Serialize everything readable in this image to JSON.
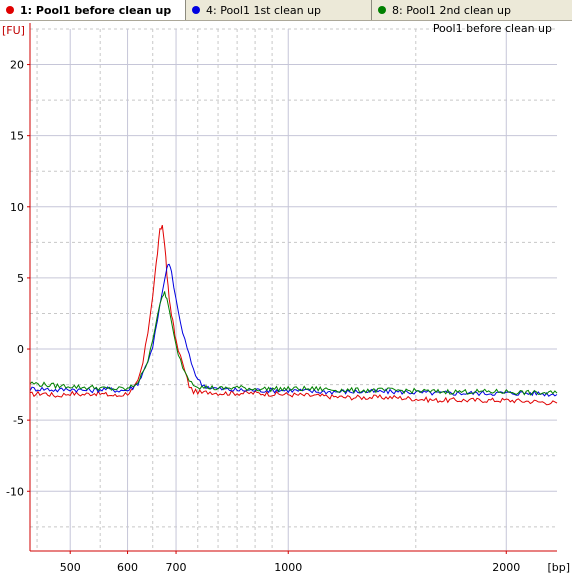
{
  "tabs": [
    {
      "label": "1: Pool1 before clean up",
      "color": "#e00000",
      "active": true
    },
    {
      "label": "4: Pool1 1st clean up",
      "color": "#0000e0",
      "active": false
    },
    {
      "label": "8: Pool1 2nd clean up",
      "color": "#008000",
      "active": false
    }
  ],
  "chart_data": {
    "type": "line",
    "title": "Pool1 before clean up",
    "ylabel": "[FU]",
    "xlabel": "[bp]",
    "ylim": [
      -14.2,
      22.5
    ],
    "xlim": [
      440,
      2350
    ],
    "x_scale": "log",
    "y_ticks": [
      20,
      15,
      10,
      5,
      0,
      -5,
      -10
    ],
    "x_ticks": [
      500,
      600,
      700,
      1000,
      2000
    ],
    "grid": true,
    "series": [
      {
        "name": "1: Pool1 before clean up",
        "color": "#e00000",
        "x": [
          440,
          460,
          480,
          500,
          520,
          540,
          560,
          580,
          600,
          610,
          620,
          630,
          640,
          650,
          655,
          660,
          665,
          670,
          675,
          680,
          685,
          690,
          695,
          700,
          710,
          720,
          730,
          740,
          750,
          760,
          780,
          800,
          850,
          900,
          1000,
          1100,
          1200,
          1400,
          1600,
          1800,
          2000,
          2200,
          2350
        ],
        "y": [
          -3.2,
          -3.1,
          -3.3,
          -3.1,
          -3.2,
          -3.1,
          -3.2,
          -3.3,
          -3.1,
          -2.9,
          -2.3,
          -1.0,
          1.2,
          3.8,
          5.3,
          6.8,
          8.3,
          8.7,
          7.5,
          5.2,
          3.5,
          2.5,
          1.5,
          0.5,
          -0.5,
          -1.6,
          -2.6,
          -3.0,
          -3.0,
          -3.1,
          -3.0,
          -3.1,
          -3.1,
          -3.1,
          -3.2,
          -3.3,
          -3.4,
          -3.4,
          -3.6,
          -3.6,
          -3.6,
          -3.7,
          -3.8
        ]
      },
      {
        "name": "4: Pool1 1st clean up",
        "color": "#0000e0",
        "x": [
          440,
          460,
          480,
          500,
          520,
          540,
          560,
          580,
          600,
          610,
          620,
          630,
          640,
          650,
          660,
          670,
          680,
          685,
          690,
          700,
          710,
          720,
          730,
          740,
          750,
          760,
          780,
          800,
          850,
          900,
          1000,
          1100,
          1200,
          1400,
          1600,
          1800,
          2000,
          2200,
          2350
        ],
        "y": [
          -2.8,
          -2.8,
          -2.9,
          -2.8,
          -2.9,
          -2.9,
          -2.8,
          -2.9,
          -2.9,
          -2.7,
          -2.4,
          -1.7,
          -0.8,
          0.2,
          2.0,
          4.0,
          5.6,
          6.1,
          5.3,
          3.5,
          1.8,
          0.6,
          -0.5,
          -1.4,
          -2.1,
          -2.5,
          -2.7,
          -2.8,
          -2.9,
          -2.9,
          -2.9,
          -3.0,
          -3.0,
          -3.0,
          -3.1,
          -3.1,
          -3.1,
          -3.1,
          -3.2
        ]
      },
      {
        "name": "8: Pool1 2nd clean up",
        "color": "#008000",
        "x": [
          440,
          460,
          480,
          500,
          520,
          540,
          560,
          580,
          600,
          610,
          620,
          630,
          640,
          650,
          660,
          670,
          675,
          680,
          690,
          700,
          710,
          720,
          730,
          740,
          750,
          760,
          780,
          800,
          850,
          900,
          1000,
          1100,
          1200,
          1400,
          1600,
          1800,
          2000,
          2200,
          2350
        ],
        "y": [
          -2.4,
          -2.5,
          -2.6,
          -2.6,
          -2.7,
          -2.7,
          -2.8,
          -2.8,
          -2.8,
          -2.6,
          -2.3,
          -1.7,
          -0.7,
          0.7,
          2.4,
          3.6,
          4.0,
          3.5,
          1.8,
          0.2,
          -0.8,
          -1.6,
          -2.1,
          -2.4,
          -2.6,
          -2.7,
          -2.7,
          -2.8,
          -2.7,
          -2.8,
          -2.8,
          -2.8,
          -2.9,
          -2.9,
          -3.0,
          -3.0,
          -3.0,
          -3.1,
          -3.1
        ]
      }
    ]
  }
}
